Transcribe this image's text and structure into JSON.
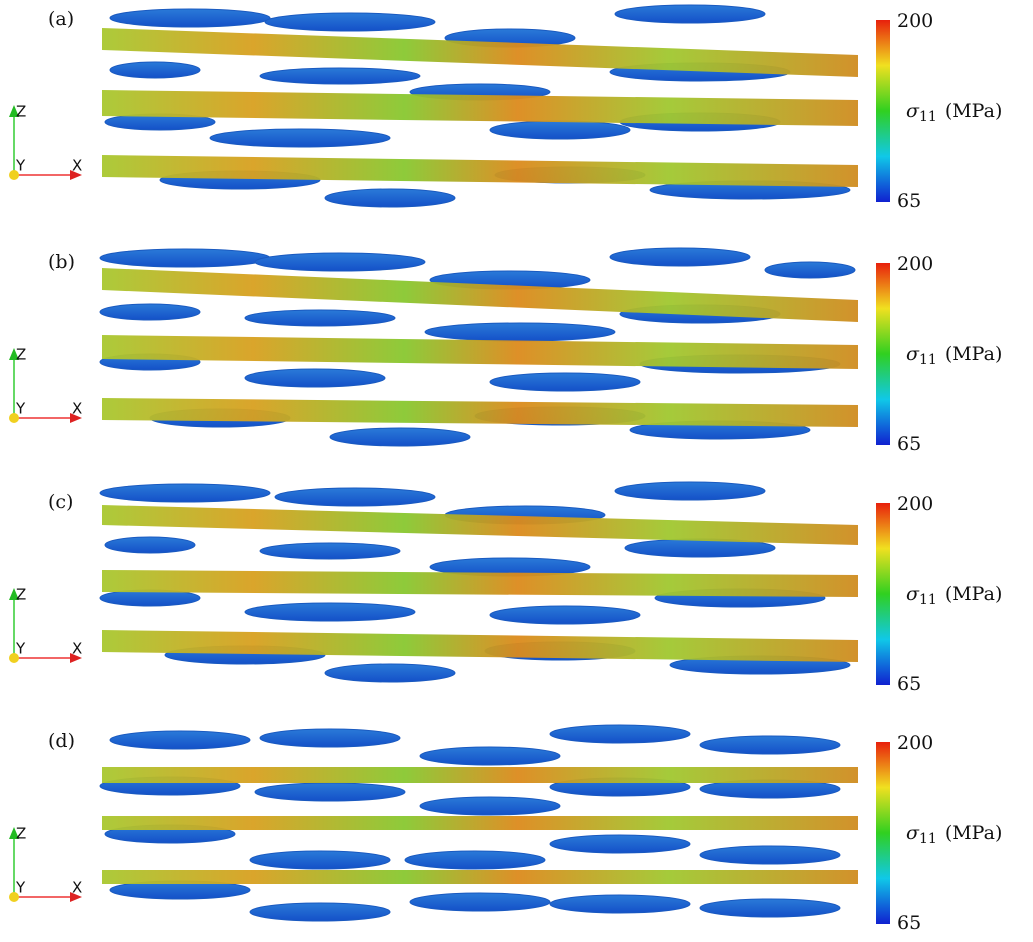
{
  "panels": [
    {
      "label": "(a)",
      "colorbar": {
        "max": 200,
        "min": 65,
        "symbol": "σ",
        "subscript": "11",
        "unit": "(MPa)"
      },
      "axes": {
        "z": "Z",
        "y": "Y",
        "x": "X"
      }
    },
    {
      "label": "(b)",
      "colorbar": {
        "max": 200,
        "min": 65,
        "symbol": "σ",
        "subscript": "11",
        "unit": "(MPa)"
      },
      "axes": {
        "z": "Z",
        "y": "Y",
        "x": "X"
      }
    },
    {
      "label": "(c)",
      "colorbar": {
        "max": 200,
        "min": 65,
        "symbol": "σ",
        "subscript": "11",
        "unit": "(MPa)"
      },
      "axes": {
        "z": "Z",
        "y": "Y",
        "x": "X"
      }
    },
    {
      "label": "(d)",
      "colorbar": {
        "max": 200,
        "min": 65,
        "symbol": "σ",
        "subscript": "11",
        "unit": "(MPa)"
      },
      "axes": {
        "z": "Z",
        "y": "Y",
        "x": "X"
      }
    }
  ]
}
